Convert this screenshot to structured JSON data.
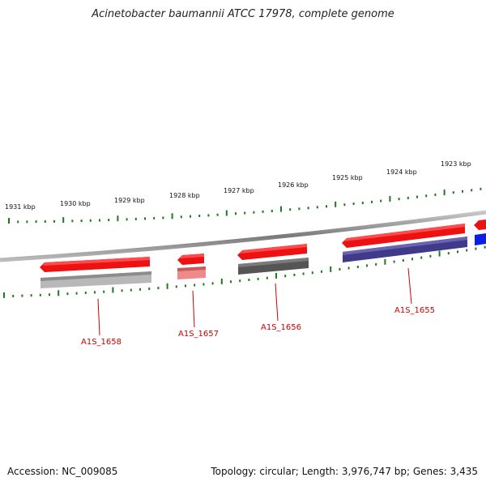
{
  "title": "Acinetobacter baumannii ATCC 17978, complete genome",
  "footer": {
    "accession": "Accession: NC_009085",
    "summary": "Topology: circular; Length: 3,976,747 bp; Genes: 3,435"
  },
  "colors": {
    "tick": "#1e7a1e",
    "backbone": "#888888",
    "cds_forward": "#ee1111",
    "label": "#cc0000"
  },
  "ruler": {
    "labels": [
      "1931 kbp",
      "1930 kbp",
      "1929 kbp",
      "1928 kbp",
      "1927 kbp",
      "1926 kbp",
      "1925 kbp",
      "1924 kbp",
      "1923 kbp"
    ]
  },
  "genes": [
    {
      "locus": "A1S_1658",
      "protein_color": "#b8b8b8"
    },
    {
      "locus": "A1S_1657",
      "protein_color": "#f08a8a"
    },
    {
      "locus": "A1S_1656",
      "protein_color": "#555555"
    },
    {
      "locus": "A1S_1655",
      "protein_color": "#3f3a8a"
    },
    {
      "locus": "",
      "protein_color": "#0a1ee6"
    }
  ]
}
